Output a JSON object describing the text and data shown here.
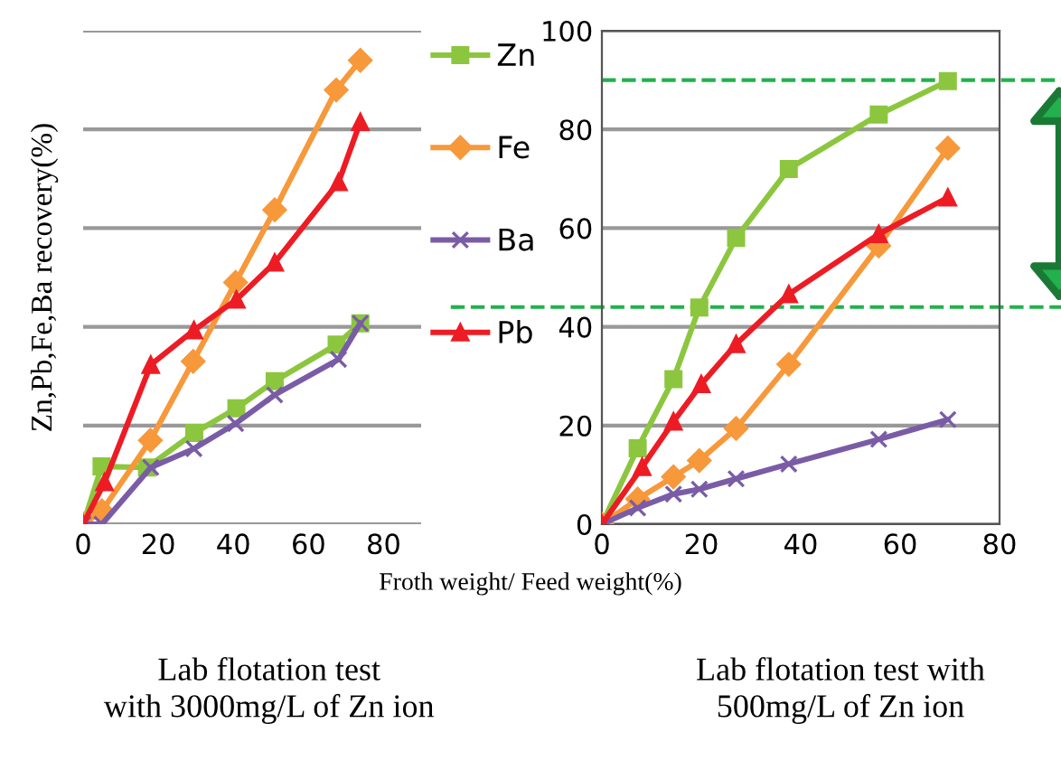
{
  "chart_data": [
    {
      "type": "line",
      "title": "Lab flotation test\nwith 3000mg/L of Zn ion",
      "xlabel": "Froth weight/ Feed weight(%)",
      "ylabel": "Zn,Pb,Fe,Ba recovery(%)",
      "xlim": [
        0,
        90
      ],
      "xticks": [
        0,
        20,
        40,
        60,
        80
      ],
      "ylim": [
        0,
        100
      ],
      "yticks": [
        0,
        20,
        40,
        60,
        80,
        100
      ],
      "tick_labels": "x",
      "grid": "y",
      "legend": "right",
      "series": [
        {
          "name": "Zn",
          "color": "#8cc63f",
          "marker": "square",
          "x": [
            0,
            4.9,
            17,
            29.6,
            40.8,
            51,
            67.5,
            73.8
          ],
          "values": [
            0,
            11.7,
            11.5,
            18.5,
            23.5,
            29,
            36.4,
            40.7
          ]
        },
        {
          "name": "Fe",
          "color": "#f7983a",
          "marker": "diamond",
          "x": [
            0,
            5,
            17.9,
            29.3,
            40.6,
            51,
            67.4,
            73.8
          ],
          "values": [
            0,
            2.7,
            17,
            33,
            49,
            63.7,
            88,
            94
          ]
        },
        {
          "name": "Ba",
          "color": "#7a5ca6",
          "marker": "cross",
          "x": [
            0,
            5,
            18,
            29.5,
            40.6,
            51,
            68,
            73.8
          ],
          "values": [
            0,
            0,
            11.5,
            15.3,
            20.4,
            26.2,
            33.4,
            40.7
          ]
        },
        {
          "name": "Pb",
          "color": "#ed1c24",
          "marker": "triangle",
          "x": [
            0,
            5.7,
            18,
            29.5,
            40.8,
            51,
            68,
            73.8
          ],
          "values": [
            0,
            8.5,
            32.3,
            39.3,
            45.5,
            53,
            69.3,
            81.5
          ]
        }
      ]
    },
    {
      "type": "line",
      "title": "Lab flotation test with\n500mg/L of Zn ion",
      "xlim": [
        0,
        80
      ],
      "xticks": [
        0,
        20,
        40,
        60,
        80
      ],
      "ylim": [
        0,
        100
      ],
      "yticks": [
        0,
        20,
        40,
        60,
        80,
        100
      ],
      "grid": "y",
      "ref_lines": [
        {
          "axis": "y",
          "value": 90,
          "color": "#22b14c",
          "line_style": "dashed"
        },
        {
          "axis": "y",
          "value": 44,
          "color": "#22b14c",
          "line_style": "dashed"
        }
      ],
      "series": [
        {
          "color": "#8cc63f",
          "marker": "square",
          "x": [
            0,
            7.2,
            14.4,
            19.6,
            27,
            37.6,
            55.7,
            69.6
          ],
          "values": [
            0,
            15.4,
            29.4,
            43.9,
            58,
            72,
            83,
            89.8
          ]
        },
        {
          "color": "#f7983a",
          "marker": "diamond",
          "x": [
            0,
            7.2,
            14.4,
            19.6,
            27,
            37.6,
            55.7,
            69.6
          ],
          "values": [
            0,
            5.1,
            9.6,
            12.9,
            19.4,
            32.4,
            56.4,
            76.2
          ]
        },
        {
          "color": "#7a5ca6",
          "marker": "cross",
          "x": [
            0,
            7.2,
            14.4,
            19.6,
            27,
            37.6,
            55.7,
            69.6
          ],
          "values": [
            0,
            3.3,
            6.1,
            7.1,
            9.2,
            12.2,
            17.2,
            21.2
          ]
        },
        {
          "color": "#ed1c24",
          "marker": "triangle",
          "x": [
            0,
            8.1,
            14.4,
            20,
            27,
            37.6,
            55.7,
            69.6
          ],
          "values": [
            0,
            11.6,
            20.8,
            28.4,
            36.5,
            46.6,
            58.8,
            66.2
          ]
        }
      ]
    }
  ]
}
